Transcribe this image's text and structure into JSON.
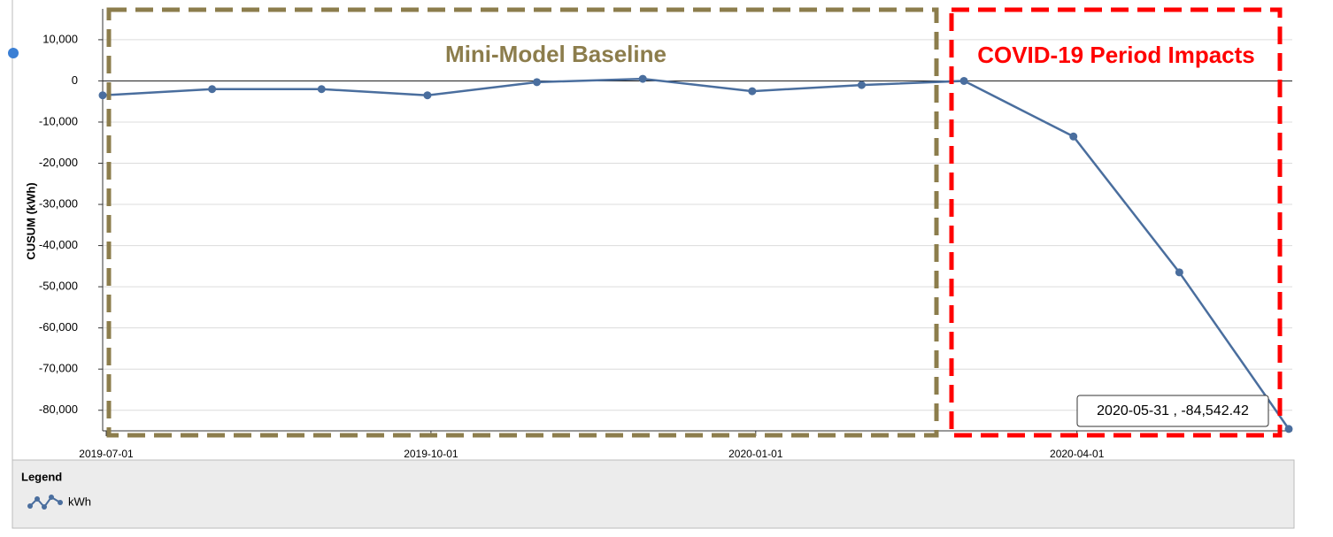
{
  "chart_data": {
    "type": "line",
    "y_label": "CUSUM (kWh)",
    "x": [
      "2019-06-30",
      "2019-07-31",
      "2019-08-31",
      "2019-09-30",
      "2019-10-31",
      "2019-11-30",
      "2019-12-31",
      "2020-01-31",
      "2020-02-29",
      "2020-03-31",
      "2020-04-30",
      "2020-05-31"
    ],
    "series": [
      {
        "name": "kWh",
        "color": "#4a6e9e",
        "values": [
          -3500,
          -2000,
          -2000,
          -3500,
          -300,
          500,
          -2500,
          -1000,
          0,
          -13500,
          -46500,
          -84542.42
        ]
      }
    ],
    "xlim": [
      "2019-06-30",
      "2020-06-01"
    ],
    "xticks": [
      "2019-07-01",
      "2019-10-01",
      "2020-01-01",
      "2020-04-01"
    ],
    "ylim": [
      -85000,
      17500
    ],
    "yticks": [
      {
        "value": 10000,
        "label": "10,000"
      },
      0,
      {
        "value": -10000,
        "label": "-10,000"
      },
      {
        "value": -20000,
        "label": "-20,000"
      },
      {
        "value": -30000,
        "label": "-30,000"
      },
      {
        "value": -40000,
        "label": "-40,000"
      },
      {
        "value": -50000,
        "label": "-50,000"
      },
      {
        "value": -60000,
        "label": "-60,000"
      },
      {
        "value": -70000,
        "label": "-70,000"
      },
      {
        "value": -80000,
        "label": "-80,000"
      }
    ],
    "grid": true,
    "annotations": {
      "baseline": "Mini-Model Baseline",
      "covid": "COVID-19 Period Impacts",
      "tooltip": "2020-05-31 , -84,542.42"
    },
    "legend_title": "Legend"
  }
}
